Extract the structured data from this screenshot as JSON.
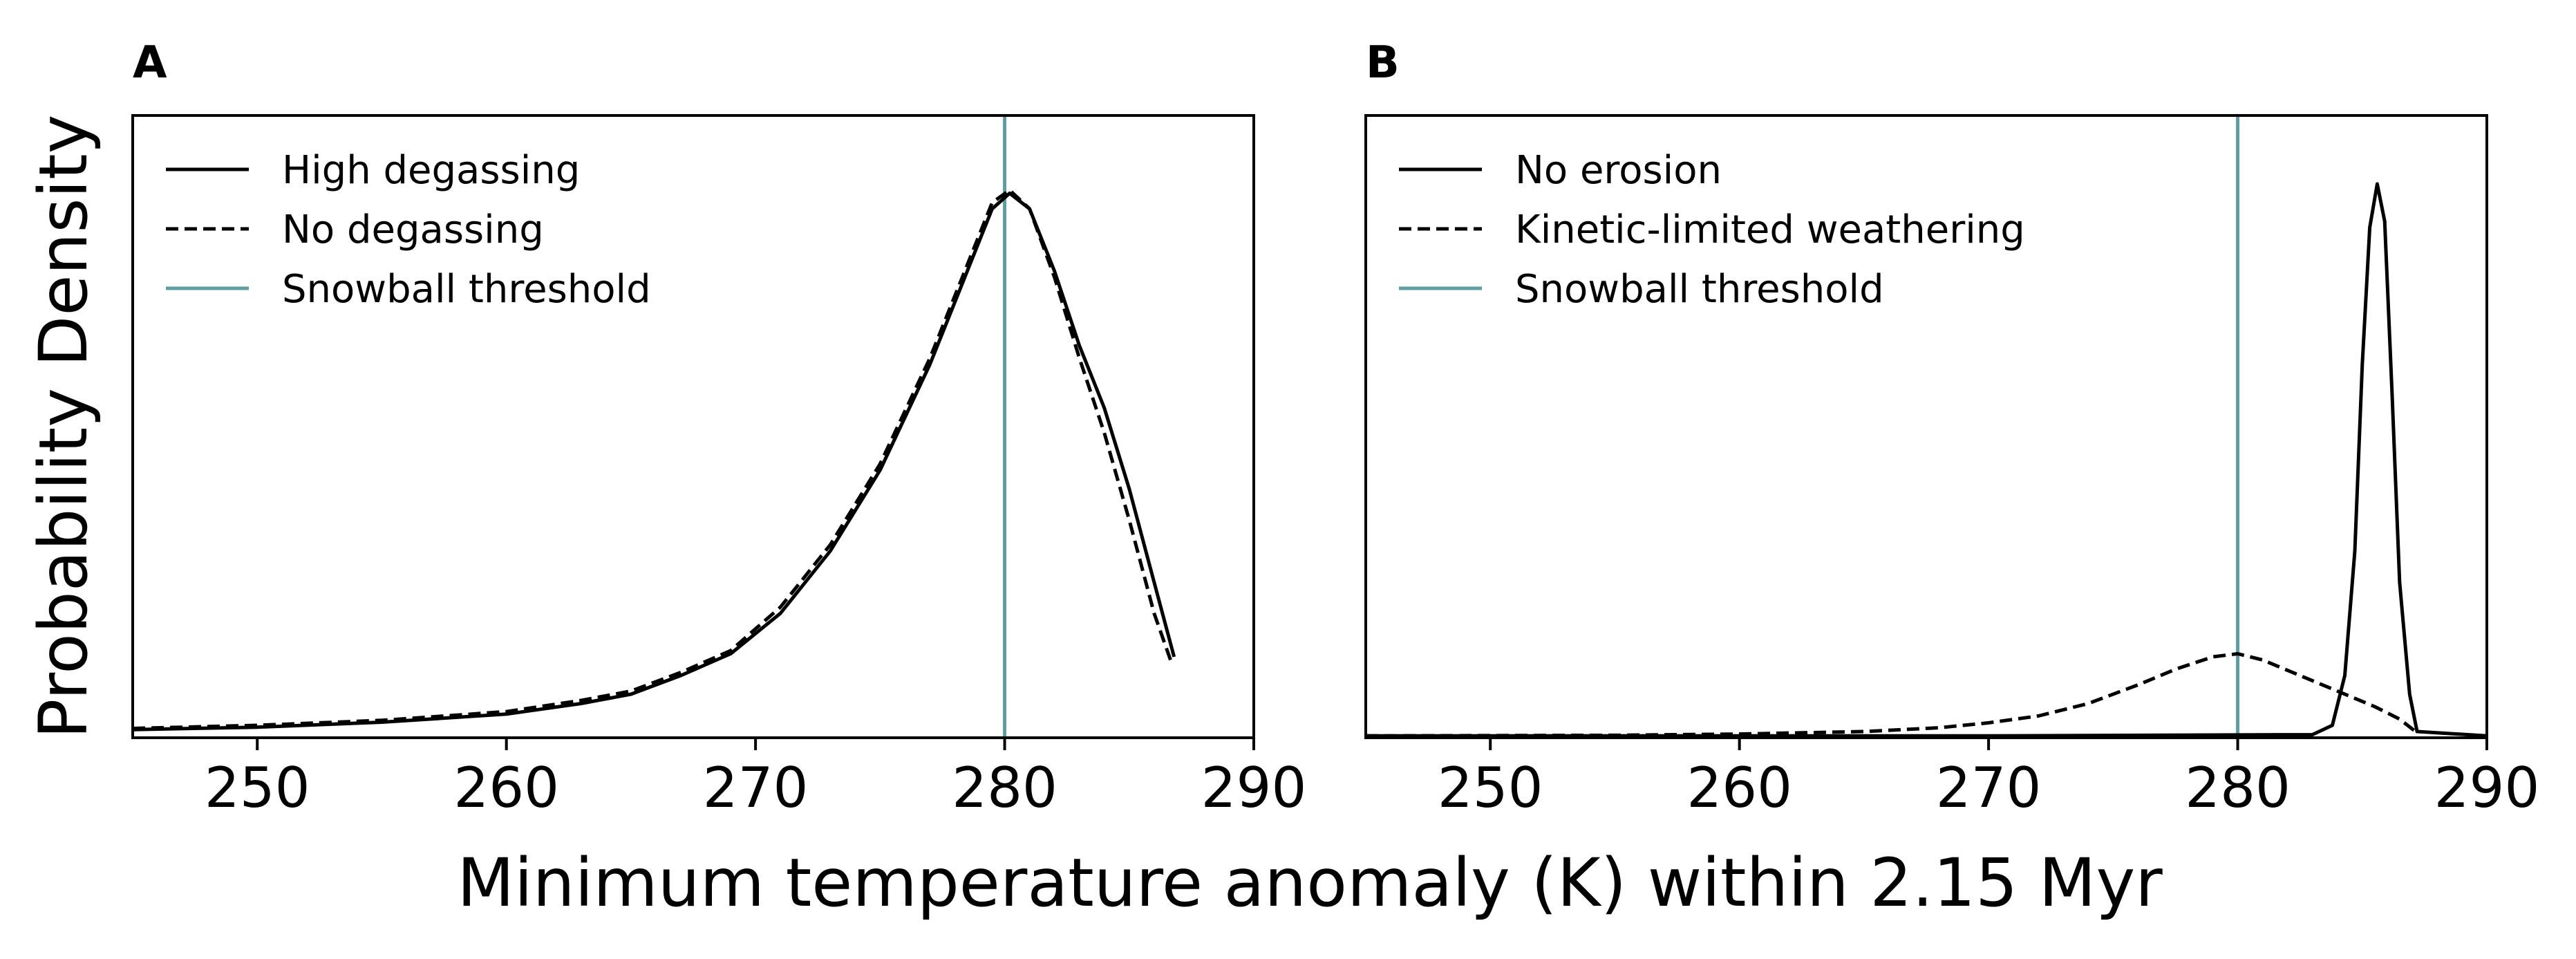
{
  "figure": {
    "ylabel": "Probability Density",
    "xlabel": "Minimum temperature anomaly (K) within 2.15 Myr"
  },
  "colors": {
    "curve": "#000000",
    "threshold": "#5f9ea0"
  },
  "chart_data": [
    {
      "type": "line",
      "panel": "A",
      "xlim": [
        245,
        290
      ],
      "ylim": [
        0,
        1
      ],
      "xticks": [
        "250",
        "260",
        "270",
        "280",
        "290"
      ],
      "yticks_shown": false,
      "legend_position": "top-left",
      "legend": [
        "High degassing",
        "No degassing",
        "Snowball threshold"
      ],
      "threshold_x": 280,
      "series": [
        {
          "name": "High degassing",
          "style": "solid",
          "x": [
            245,
            250,
            255,
            260,
            263,
            265,
            267,
            269,
            271,
            273,
            275,
            277,
            278.5,
            279.5,
            280.2,
            281,
            282,
            283,
            284,
            285,
            286,
            286.8
          ],
          "y": [
            0.013,
            0.017,
            0.025,
            0.038,
            0.055,
            0.07,
            0.1,
            0.135,
            0.2,
            0.3,
            0.43,
            0.6,
            0.75,
            0.85,
            0.875,
            0.85,
            0.75,
            0.63,
            0.53,
            0.4,
            0.25,
            0.13
          ]
        },
        {
          "name": "No degassing",
          "style": "dashed",
          "x": [
            245,
            250,
            255,
            260,
            263,
            265,
            267,
            269,
            271,
            273,
            275,
            277,
            278.5,
            279.5,
            280.2,
            281,
            282,
            283,
            284,
            285,
            286,
            286.7
          ],
          "y": [
            0.015,
            0.02,
            0.028,
            0.042,
            0.06,
            0.075,
            0.105,
            0.14,
            0.21,
            0.31,
            0.44,
            0.61,
            0.76,
            0.86,
            0.88,
            0.85,
            0.74,
            0.61,
            0.49,
            0.35,
            0.2,
            0.12
          ]
        }
      ]
    },
    {
      "type": "line",
      "panel": "B",
      "xlim": [
        245,
        290
      ],
      "ylim": [
        0,
        1
      ],
      "xticks": [
        "250",
        "260",
        "270",
        "280",
        "290"
      ],
      "yticks_shown": false,
      "legend_position": "top-left",
      "legend": [
        "No erosion",
        "Kinetic-limited weathering",
        "Snowball threshold"
      ],
      "threshold_x": 280,
      "series": [
        {
          "name": "No erosion",
          "style": "solid",
          "x": [
            245,
            270,
            283,
            283.8,
            284.3,
            284.7,
            285.0,
            285.3,
            285.6,
            285.9,
            286.2,
            286.5,
            286.9,
            287.2,
            290
          ],
          "y": [
            0.003,
            0.003,
            0.005,
            0.02,
            0.1,
            0.3,
            0.6,
            0.82,
            0.89,
            0.83,
            0.55,
            0.25,
            0.07,
            0.01,
            0.003
          ]
        },
        {
          "name": "Kinetic-limited weathering",
          "style": "dashed",
          "x": [
            245,
            255,
            260,
            265,
            268,
            270,
            272,
            274,
            276,
            277.5,
            279,
            280,
            281,
            282.5,
            284,
            285.5,
            286.5,
            287.2
          ],
          "y": [
            0.003,
            0.004,
            0.006,
            0.01,
            0.016,
            0.024,
            0.035,
            0.055,
            0.085,
            0.11,
            0.13,
            0.135,
            0.125,
            0.1,
            0.075,
            0.05,
            0.03,
            0.008
          ]
        }
      ]
    }
  ]
}
